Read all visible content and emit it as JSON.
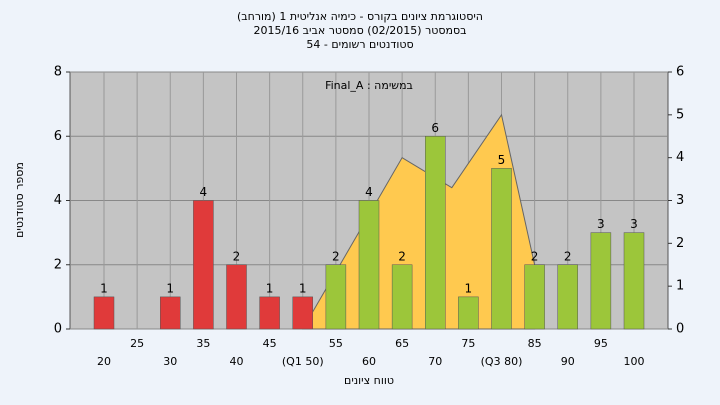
{
  "chart_data": {
    "type": "bar",
    "title": "היסטוגרמת ציונים בקורס - כימיה אנליטית 1 (מורחב)",
    "subtitle": "בסמסטר (02/2015) סמסטר אביב 2015/16",
    "subtitle2": "סטודנטים רשומים - 54",
    "annotation": "במשימה : Final_A",
    "y_label": "מספר סטודנטים",
    "x_label": "טווח ציונים",
    "categories": [
      "20",
      "25",
      "30",
      "35",
      "40",
      "45",
      "(Q1 50)",
      "55",
      "60",
      "65",
      "70",
      "75",
      "(Q3 80)",
      "85",
      "90",
      "95",
      "100"
    ],
    "values": [
      1,
      null,
      1,
      4,
      2,
      1,
      1,
      2,
      4,
      2,
      6,
      1,
      5,
      2,
      2,
      3,
      3
    ],
    "colors": [
      "#e03a3a",
      "#e03a3a",
      "#e03a3a",
      "#e03a3a",
      "#e03a3a",
      "#e03a3a",
      "#e03a3a",
      "#9cc63a",
      "#9cc63a",
      "#9cc63a",
      "#9cc63a",
      "#9cc63a",
      "#9cc63a",
      "#9cc63a",
      "#9cc63a",
      "#9cc63a",
      "#9cc63a"
    ],
    "area": {
      "color": "#ffc94f",
      "axis": "y2",
      "x": [
        50,
        65,
        72.5,
        80,
        85
      ],
      "values": [
        0,
        4,
        3.3,
        5,
        1.5
      ]
    },
    "ylim": [
      0,
      8
    ],
    "yticks": [
      0,
      2,
      4,
      6,
      8
    ],
    "y2lim": [
      0,
      6
    ],
    "y2ticks": [
      0,
      1,
      2,
      3,
      4,
      5,
      6
    ],
    "grid": true
  }
}
